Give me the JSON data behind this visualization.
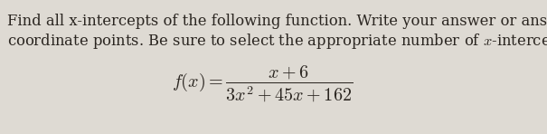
{
  "line1": "Find all x-intercepts of the following function. Write your answer or answers as",
  "line2": "coordinate points. Be sure to select the appropriate number of $x$-intercepts.",
  "formula": "$f(x) = \\dfrac{x + 6}{3x^2 + 45x + 162}$",
  "bg_color": "#dedad3",
  "text_color": "#2a2520",
  "font_size_body": 11.8,
  "font_size_formula": 14.5,
  "figwidth": 6.05,
  "figheight": 1.48,
  "dpi": 100
}
